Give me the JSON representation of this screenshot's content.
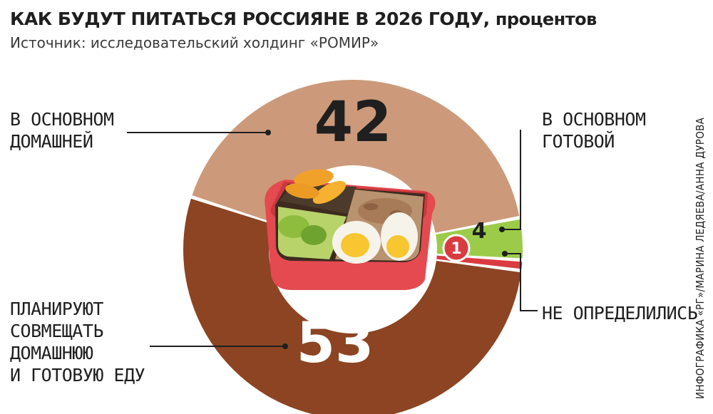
{
  "header": {
    "title": "КАК БУДУТ ПИТАТЬСЯ РОССИЯНЕ В 2026 ГОДУ,",
    "title_unit": "процентов",
    "subtitle": "Источник: исследовательский холдинг «РОМИР»"
  },
  "credit": "ИНФОГРАФИКА «РГ»/МАРИНА ЛЕДЯЕВА/АННА ДУРОВА",
  "chart_data": {
    "type": "pie",
    "title": "КАК БУДУТ ПИТАТЬСЯ РОССИЯНЕ В 2026 ГОДУ, процентов",
    "slices": [
      {
        "label": "В ОСНОВНОМ ДОМАШНЕЙ",
        "label_lines": [
          "В ОСНОВНОМ",
          "ДОМАШНЕЙ"
        ],
        "value": 42,
        "value_label": "42",
        "color": "#cc9a7a"
      },
      {
        "label": "В ОСНОВНОМ ГОТОВОЙ",
        "label_lines": [
          "В ОСНОВНОМ",
          "ГОТОВОЙ"
        ],
        "value": 4,
        "value_label": "4",
        "color": "#9ccb4a"
      },
      {
        "label": "НЕ ОПРЕДЕЛИЛИСЬ",
        "label_lines": [
          "НЕ ОПРЕДЕЛИЛИСЬ"
        ],
        "value": 1,
        "value_label": "1",
        "color": "#d93b41"
      },
      {
        "label": "ПЛАНИРУЮТ СОВМЕЩАТЬ ДОМАШНЮЮ И ГОТОВУЮ ЕДУ",
        "label_lines": [
          "ПЛАНИРУЮТ",
          "СОВМЕЩАТЬ",
          "ДОМАШНЮЮ",
          "И ГОТОВУЮ ЕДУ"
        ],
        "value": 53,
        "value_label": "53",
        "color": "#8c4422"
      }
    ],
    "center_image": "lunchbox-with-food-icon",
    "legend": "none"
  }
}
